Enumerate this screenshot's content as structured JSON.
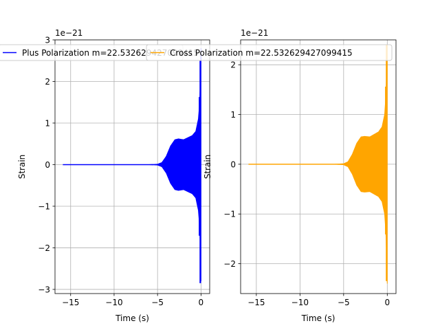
{
  "chart_data": [
    {
      "type": "line",
      "title": "",
      "xlabel": "Time (s)",
      "ylabel": "Strain",
      "offset_text": "1e−21",
      "xlim": [
        -16.8,
        1.0
      ],
      "ylim": [
        -3.1,
        3.0
      ],
      "xticks": [
        -15,
        -10,
        -5,
        0
      ],
      "xtick_labels": [
        "−15",
        "−10",
        "−5",
        "0"
      ],
      "yticks": [
        -3,
        -2,
        -1,
        0,
        1,
        2,
        3
      ],
      "ytick_labels": [
        "−3",
        "−2",
        "−1",
        "0",
        "1",
        "2",
        "3"
      ],
      "grid": true,
      "legend": "upper-center",
      "series": [
        {
          "name": "Plus Polarization m=22.532629427099415",
          "color": "#0000ff",
          "t_start": -15.9,
          "t_end": 0.0,
          "envelope_t": [
            -15.9,
            -6.0,
            -5.0,
            -4.5,
            -4.0,
            -3.5,
            -3.0,
            -2.6,
            -2.0,
            -1.5,
            -1.0,
            -0.6,
            -0.3,
            -0.15,
            -0.05,
            0.0
          ],
          "envelope_amp": [
            0.0,
            0.0,
            0.01,
            0.05,
            0.2,
            0.45,
            0.6,
            0.62,
            0.6,
            0.65,
            0.7,
            0.8,
            1.1,
            1.5,
            2.2,
            2.8
          ],
          "peak_max": 2.5,
          "peak_min": -2.85
        }
      ]
    },
    {
      "type": "line",
      "title": "",
      "xlabel": "Time (s)",
      "ylabel": "Strain",
      "offset_text": "1e−21",
      "xlim": [
        -16.8,
        1.0
      ],
      "ylim": [
        -2.6,
        2.5
      ],
      "xticks": [
        -15,
        -10,
        -5,
        0
      ],
      "xtick_labels": [
        "−15",
        "−10",
        "−5",
        "0"
      ],
      "yticks": [
        -2,
        -1,
        0,
        1,
        2
      ],
      "ytick_labels": [
        "−2",
        "−1",
        "0",
        "1",
        "2"
      ],
      "grid": true,
      "legend": "upper-center",
      "series": [
        {
          "name": "Cross Polarization m=22.532629427099415",
          "color": "#ffa500",
          "t_start": -15.9,
          "t_end": 0.0,
          "envelope_t": [
            -15.9,
            -6.0,
            -5.0,
            -4.5,
            -4.0,
            -3.5,
            -3.0,
            -2.6,
            -2.0,
            -1.5,
            -1.0,
            -0.6,
            -0.3,
            -0.15,
            -0.05,
            0.0
          ],
          "envelope_amp": [
            0.0,
            0.0,
            0.01,
            0.05,
            0.2,
            0.42,
            0.55,
            0.56,
            0.55,
            0.6,
            0.65,
            0.75,
            1.0,
            1.4,
            2.0,
            2.4
          ],
          "peak_max": 2.4,
          "peak_min": -2.35
        }
      ]
    }
  ]
}
